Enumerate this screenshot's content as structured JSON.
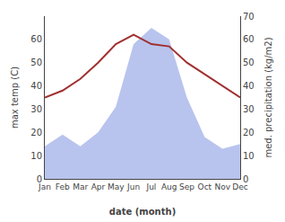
{
  "chart_data": {
    "type": "line",
    "categories": [
      "Jan",
      "Feb",
      "Mar",
      "Apr",
      "May",
      "Jun",
      "Jul",
      "Aug",
      "Sep",
      "Oct",
      "Nov",
      "Dec"
    ],
    "series": [
      {
        "type": "area",
        "color": "#b8c4ee",
        "values": [
          14,
          19,
          14,
          20,
          31,
          58,
          65,
          60,
          35,
          18,
          13,
          15
        ]
      },
      {
        "type": "line",
        "color": "#a03030",
        "values": [
          35,
          38,
          43,
          50,
          58,
          62,
          58,
          57,
          50,
          45,
          40,
          35
        ]
      }
    ],
    "xlabel": "date (month)",
    "ylabel": "max temp (C)",
    "y2label": "med. precipitation (kg/m2)",
    "ylim": [
      0,
      70
    ],
    "yticks": [
      0,
      10,
      20,
      30,
      40,
      50,
      60
    ],
    "y2lim": [
      0,
      70
    ],
    "y2ticks": [
      0,
      10,
      20,
      30,
      40,
      50,
      60,
      70
    ],
    "grid": false
  }
}
